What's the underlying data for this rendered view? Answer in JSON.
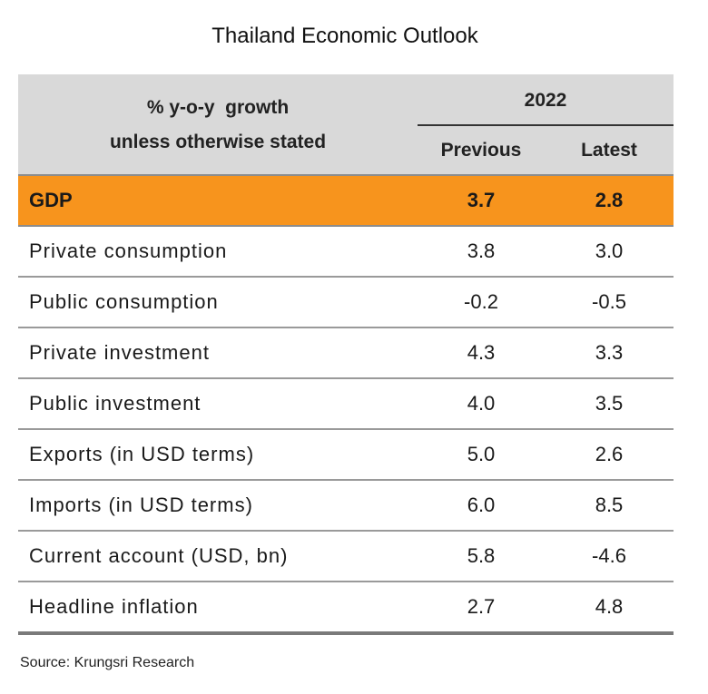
{
  "title": "Thailand Economic Outlook",
  "header": {
    "stub_line1": "% y-o-y  growth",
    "stub_line2": "unless otherwise stated",
    "year": "2022",
    "col_previous": "Previous",
    "col_latest": "Latest"
  },
  "rows": [
    {
      "label": "GDP",
      "previous": "3.7",
      "latest": "2.8"
    },
    {
      "label": "Private consumption",
      "previous": "3.8",
      "latest": "3.0"
    },
    {
      "label": "Public consumption",
      "previous": "-0.2",
      "latest": "-0.5"
    },
    {
      "label": "Private investment",
      "previous": "4.3",
      "latest": "3.3"
    },
    {
      "label": "Public investment",
      "previous": "4.0",
      "latest": "3.5"
    },
    {
      "label": "Exports (in USD terms)",
      "previous": "5.0",
      "latest": "2.6"
    },
    {
      "label": "Imports (in USD terms)",
      "previous": "6.0",
      "latest": "8.5"
    },
    {
      "label": "Current account (USD, bn)",
      "previous": "5.8",
      "latest": "-4.6"
    },
    {
      "label": "Headline inflation",
      "previous": "2.7",
      "latest": "4.8"
    }
  ],
  "source": "Source: Krungsri Research",
  "colors": {
    "highlight": "#f7941d",
    "header_bg": "#d9d9d9"
  }
}
